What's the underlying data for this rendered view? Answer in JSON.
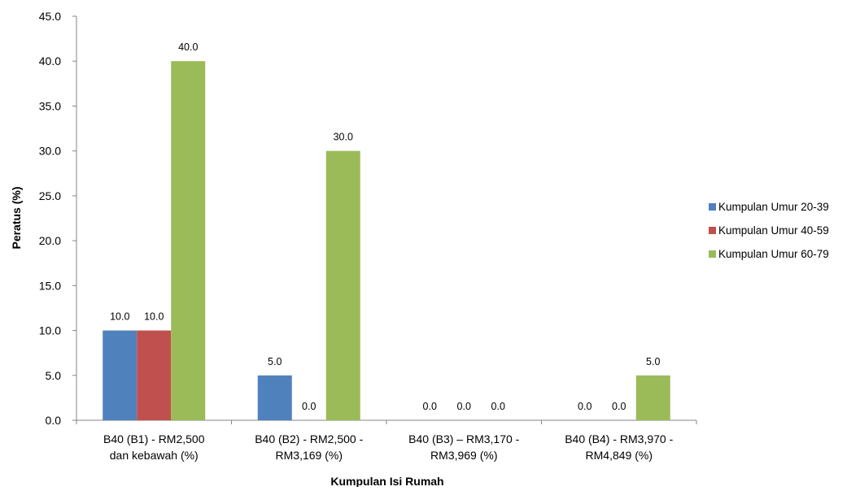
{
  "chart_data": {
    "type": "bar",
    "xlabel": "Kumpulan Isi Rumah",
    "ylabel": "Peratus (%)",
    "ylim": [
      0,
      45
    ],
    "yticks": [
      "0.0",
      "5.0",
      "10.0",
      "15.0",
      "20.0",
      "25.0",
      "30.0",
      "35.0",
      "40.0",
      "45.0"
    ],
    "grid": false,
    "legend_position": "right",
    "categories": [
      [
        "B40 (B1) - RM2,500",
        "dan kebawah (%)"
      ],
      [
        "B40 (B2) - RM2,500 -",
        "RM3,169 (%)"
      ],
      [
        "B40 (B3) – RM3,170 -",
        "RM3,969 (%)"
      ],
      [
        "B40 (B4) - RM3,970 -",
        "RM4,849 (%)"
      ]
    ],
    "series": [
      {
        "name": "Kumpulan Umur 20-39",
        "color": "#4F81BD",
        "values": [
          10,
          5,
          0,
          0
        ],
        "labels": [
          "10.0",
          "5.0",
          "0.0",
          "0.0"
        ]
      },
      {
        "name": "Kumpulan Umur 40-59",
        "color": "#C0504D",
        "values": [
          10,
          0,
          0,
          0
        ],
        "labels": [
          "10.0",
          "0.0",
          "0.0",
          "0.0"
        ]
      },
      {
        "name": "Kumpulan Umur 60-79",
        "color": "#9BBB59",
        "values": [
          40,
          30,
          0,
          5
        ],
        "labels": [
          "40.0",
          "30.0",
          "0.0",
          "5.0"
        ]
      }
    ]
  }
}
